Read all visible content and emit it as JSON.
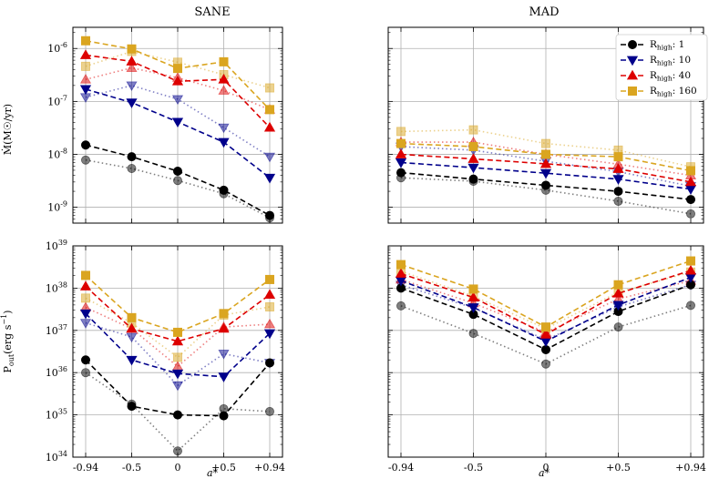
{
  "chart_data": {
    "type": "line",
    "x_categories": [
      "-0.94",
      "-0.5",
      "0",
      "+0.5",
      "+0.94"
    ],
    "xlabel": "a*",
    "columns": [
      "SANE",
      "MAD"
    ],
    "colors": {
      "1": "#000000",
      "10": "#00008b",
      "40": "#dd0000",
      "160": "#daa520"
    },
    "legend": {
      "placement": "top-right of MAD top panel",
      "entries": [
        {
          "key": "1",
          "label_main": "R",
          "label_sub": "high",
          "label_value": ": 1",
          "marker": "circle"
        },
        {
          "key": "10",
          "label_main": "R",
          "label_sub": "high",
          "label_value": ": 10",
          "marker": "triangle-down"
        },
        {
          "key": "40",
          "label_main": "R",
          "label_sub": "high",
          "label_value": ": 40",
          "marker": "triangle-up"
        },
        {
          "key": "160",
          "label_main": "R",
          "label_sub": "high",
          "label_value": ": 160",
          "marker": "square"
        }
      ]
    },
    "rows": [
      {
        "quantity": "mdot",
        "ylabel": "Ṁ(M☉/yr)",
        "ylim_log10": [
          -9.3,
          -5.6
        ],
        "y_ticks": [
          {
            "exp": -9,
            "base": "10",
            "sup": "-9"
          },
          {
            "exp": -8,
            "base": "10",
            "sup": "-8"
          },
          {
            "exp": -7,
            "base": "10",
            "sup": "-7"
          },
          {
            "exp": -6,
            "base": "10",
            "sup": "-6"
          }
        ]
      },
      {
        "quantity": "pout",
        "ylabel_main": "P",
        "ylabel_sub": "out",
        "ylabel_rest": "(erg s",
        "ylabel_sup": "−1",
        "ylabel_end": ")",
        "ylim_log10": [
          34,
          39
        ],
        "y_ticks": [
          {
            "exp": 34,
            "base": "10",
            "sup": "34"
          },
          {
            "exp": 35,
            "base": "10",
            "sup": "35"
          },
          {
            "exp": 36,
            "base": "10",
            "sup": "36"
          },
          {
            "exp": 37,
            "base": "10",
            "sup": "37"
          },
          {
            "exp": 38,
            "base": "10",
            "sup": "38"
          },
          {
            "exp": 39,
            "base": "10",
            "sup": "39"
          }
        ]
      }
    ],
    "panels": [
      {
        "column": "SANE",
        "row": "mdot",
        "dashed": {
          "1": [
            1.5e-08,
            9e-09,
            4.8e-09,
            2.1e-09,
            7e-10
          ],
          "10": [
            1.7e-07,
            9.5e-08,
            4.1e-08,
            1.7e-08,
            3.6e-09
          ],
          "40": [
            7.5e-07,
            5.7e-07,
            2.4e-07,
            2.6e-07,
            3.2e-08
          ],
          "160": [
            1.4e-06,
            9.8e-07,
            4.2e-07,
            5.6e-07,
            7e-08
          ]
        },
        "dotted": {
          "1": [
            7.8e-09,
            5.4e-09,
            3.2e-09,
            1.8e-09,
            6.3e-10
          ],
          "10": [
            1.2e-07,
            2e-07,
            1.1e-07,
            3.2e-08,
            9e-09
          ],
          "40": [
            2.6e-07,
            4.3e-07,
            2.8e-07,
            1.6e-07,
            7e-08
          ],
          "160": [
            4.6e-07,
            8.8e-07,
            5.5e-07,
            3.2e-07,
            1.8e-07
          ]
        }
      },
      {
        "column": "MAD",
        "row": "mdot",
        "dashed": {
          "1": [
            4.5e-09,
            3.4e-09,
            2.6e-09,
            2e-09,
            1.4e-09
          ],
          "10": [
            7e-09,
            5.6e-09,
            4.4e-09,
            3.4e-09,
            2.2e-09
          ],
          "40": [
            1e-08,
            8.2e-09,
            6.6e-09,
            5.3e-09,
            3e-09
          ],
          "160": [
            1.6e-08,
            1.4e-08,
            1e-08,
            9e-09,
            4.9e-09
          ]
        },
        "dotted": {
          "1": [
            3.6e-09,
            3.1e-09,
            2.1e-09,
            1.3e-09,
            7.5e-10
          ],
          "10": [
            1.4e-08,
            1.2e-08,
            7.4e-09,
            4.7e-09,
            2.5e-09
          ],
          "40": [
            1.7e-08,
            1.7e-08,
            1e-08,
            6.5e-09,
            4e-09
          ],
          "160": [
            2.7e-08,
            2.9e-08,
            1.6e-08,
            1.2e-08,
            5.8e-09
          ]
        }
      },
      {
        "column": "SANE",
        "row": "pout",
        "dashed": {
          "1": [
            2e+36,
            1.6e+35,
            1e+35,
            9.5e+34,
            1.7e+36
          ],
          "10": [
            2.5e+37,
            2e+36,
            9.5e+35,
            8e+35,
            8.5e+36
          ],
          "40": [
            1.1e+38,
            1.1e+37,
            5.5e+36,
            1.1e+37,
            7e+37
          ],
          "160": [
            2e+38,
            2e+37,
            9e+36,
            2.5e+37,
            1.6e+38
          ]
        },
        "dotted": {
          "1": [
            1e+36,
            1.8e+35,
            1.4e+34,
            1.4e+35,
            1.2e+35
          ],
          "10": [
            1.5e+37,
            7e+36,
            5e+35,
            2.8e+36,
            1.7e+36
          ],
          "40": [
            3.5e+37,
            1.1e+37,
            1.4e+36,
            1.2e+37,
            1.4e+37
          ],
          "160": [
            5.8e+37,
            1.5e+37,
            2.3e+36,
            2.3e+37,
            3.6e+37
          ]
        }
      },
      {
        "column": "MAD",
        "row": "pout",
        "dashed": {
          "1": [
            1e+38,
            2.4e+37,
            3.5e+36,
            2.8e+37,
            1.2e+38
          ],
          "10": [
            1.5e+38,
            3.5e+37,
            5.5e+36,
            4e+37,
            1.8e+38
          ],
          "40": [
            2.2e+38,
            6e+37,
            8e+36,
            7.5e+37,
            2.6e+38
          ],
          "160": [
            3.6e+38,
            9.5e+37,
            1.2e+37,
            1.2e+38,
            4.4e+38
          ]
        },
        "dotted": {
          "1": [
            3.8e+37,
            8.5e+36,
            1.6e+36,
            1.2e+37,
            3.9e+37
          ],
          "10": [
            1.2e+38,
            3.4e+37,
            6e+36,
            3.6e+37,
            1.2e+38
          ],
          "40": [
            1.6e+38,
            4.4e+37,
            9e+36,
            5.5e+37,
            1.5e+38
          ],
          "160": [
            2.5e+38,
            6.5e+37,
            1.1e+37,
            8e+37,
            2.4e+38
          ]
        }
      }
    ]
  }
}
